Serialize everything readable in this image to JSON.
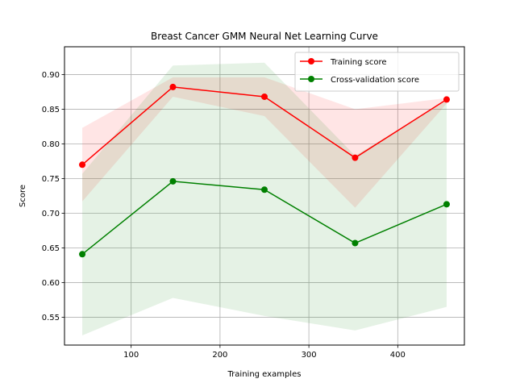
{
  "chart_data": {
    "type": "line",
    "title": "Breast Cancer GMM Neural Net Learning Curve",
    "xlabel": "Training examples",
    "ylabel": "Score",
    "xlim": [
      25,
      475
    ],
    "ylim": [
      0.51,
      0.94
    ],
    "xticks": [
      100,
      200,
      300,
      400
    ],
    "yticks": [
      0.55,
      0.6,
      0.65,
      0.7,
      0.75,
      0.8,
      0.85,
      0.9
    ],
    "grid": true,
    "legend_position": "top-right",
    "x": [
      45,
      147,
      250,
      352,
      455
    ],
    "series": [
      {
        "name": "Training score",
        "color": "#ff0000",
        "band_color": "#ff0000",
        "values": [
          0.77,
          0.882,
          0.868,
          0.78,
          0.864
        ],
        "lower": [
          0.717,
          0.868,
          0.84,
          0.708,
          0.858
        ],
        "upper": [
          0.823,
          0.896,
          0.896,
          0.85,
          0.866
        ]
      },
      {
        "name": "Cross-validation score",
        "color": "#008000",
        "band_color": "#008000",
        "values": [
          0.641,
          0.746,
          0.734,
          0.657,
          0.713
        ],
        "lower": [
          0.524,
          0.578,
          0.552,
          0.531,
          0.565
        ],
        "upper": [
          0.757,
          0.913,
          0.917,
          0.783,
          0.862
        ]
      }
    ]
  }
}
